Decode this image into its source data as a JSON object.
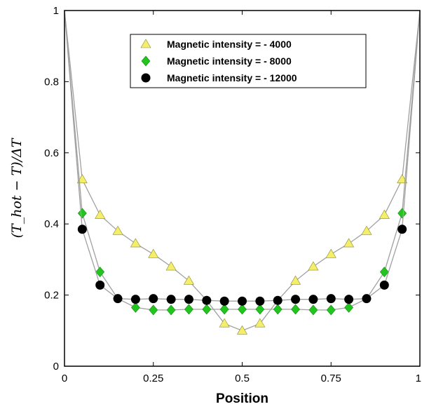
{
  "chart_data": {
    "type": "line",
    "xlabel": "Position",
    "ylabel": "(T_hot − T)/ΔT",
    "xlim": [
      0,
      1
    ],
    "ylim": [
      0,
      1
    ],
    "x_ticks": [
      0,
      0.25,
      0.5,
      0.75,
      1
    ],
    "x_tick_labels": [
      "0",
      "0.25",
      "0.5",
      "0.75",
      "1"
    ],
    "y_ticks": [
      0,
      0.2,
      0.4,
      0.6,
      0.8,
      1
    ],
    "y_tick_labels": [
      "0",
      "0.2",
      "0.4",
      "0.6",
      "0.8",
      "1"
    ],
    "grid": false,
    "legend_position": "top-right",
    "line_color": "#a0a0a0",
    "series": [
      {
        "name": "Magnetic intensity = - 4000",
        "marker": "triangle",
        "color": "#f5ee6a",
        "x": [
          0,
          0.05,
          0.1,
          0.15,
          0.2,
          0.25,
          0.3,
          0.35,
          0.4,
          0.45,
          0.5,
          0.55,
          0.6,
          0.65,
          0.7,
          0.75,
          0.8,
          0.85,
          0.9,
          0.95,
          1
        ],
        "y": [
          1,
          0.525,
          0.425,
          0.38,
          0.345,
          0.315,
          0.28,
          0.24,
          0.185,
          0.12,
          0.1,
          0.12,
          0.185,
          0.24,
          0.28,
          0.315,
          0.345,
          0.38,
          0.425,
          0.525,
          1
        ],
        "markers_x": [
          0.05,
          0.1,
          0.15,
          0.2,
          0.25,
          0.3,
          0.35,
          0.45,
          0.5,
          0.55,
          0.65,
          0.7,
          0.75,
          0.8,
          0.85,
          0.9,
          0.95
        ],
        "markers_y": [
          0.525,
          0.425,
          0.38,
          0.345,
          0.315,
          0.28,
          0.24,
          0.12,
          0.1,
          0.12,
          0.24,
          0.28,
          0.315,
          0.345,
          0.38,
          0.425,
          0.525
        ]
      },
      {
        "name": "Magnetic intensity = - 8000",
        "marker": "diamond",
        "color": "#22c51e",
        "x": [
          0,
          0.05,
          0.1,
          0.15,
          0.2,
          0.25,
          0.3,
          0.35,
          0.4,
          0.45,
          0.5,
          0.55,
          0.6,
          0.65,
          0.7,
          0.75,
          0.8,
          0.85,
          0.9,
          0.95,
          1
        ],
        "y": [
          1,
          0.43,
          0.265,
          0.19,
          0.165,
          0.158,
          0.158,
          0.16,
          0.16,
          0.16,
          0.16,
          0.16,
          0.16,
          0.16,
          0.158,
          0.158,
          0.165,
          0.19,
          0.265,
          0.43,
          1
        ],
        "markers_x": [
          0.05,
          0.1,
          0.2,
          0.25,
          0.3,
          0.35,
          0.4,
          0.45,
          0.5,
          0.55,
          0.6,
          0.65,
          0.7,
          0.75,
          0.8,
          0.9,
          0.95
        ],
        "markers_y": [
          0.43,
          0.265,
          0.165,
          0.158,
          0.158,
          0.16,
          0.16,
          0.16,
          0.16,
          0.16,
          0.16,
          0.16,
          0.158,
          0.158,
          0.165,
          0.265,
          0.43
        ]
      },
      {
        "name": "Magnetic intensity = - 12000",
        "marker": "circle",
        "color": "#000000",
        "x": [
          0,
          0.05,
          0.1,
          0.15,
          0.2,
          0.25,
          0.3,
          0.35,
          0.4,
          0.45,
          0.5,
          0.55,
          0.6,
          0.65,
          0.7,
          0.75,
          0.8,
          0.85,
          0.9,
          0.95,
          1
        ],
        "y": [
          1,
          0.385,
          0.228,
          0.19,
          0.188,
          0.19,
          0.188,
          0.188,
          0.185,
          0.183,
          0.183,
          0.183,
          0.185,
          0.188,
          0.188,
          0.19,
          0.188,
          0.19,
          0.228,
          0.385,
          1
        ],
        "markers_x": [
          0.05,
          0.1,
          0.15,
          0.2,
          0.25,
          0.3,
          0.35,
          0.4,
          0.45,
          0.5,
          0.55,
          0.6,
          0.65,
          0.7,
          0.75,
          0.8,
          0.85,
          0.9,
          0.95
        ],
        "markers_y": [
          0.385,
          0.228,
          0.19,
          0.188,
          0.19,
          0.188,
          0.188,
          0.185,
          0.183,
          0.183,
          0.183,
          0.185,
          0.188,
          0.188,
          0.19,
          0.188,
          0.19,
          0.228,
          0.385
        ]
      }
    ]
  }
}
